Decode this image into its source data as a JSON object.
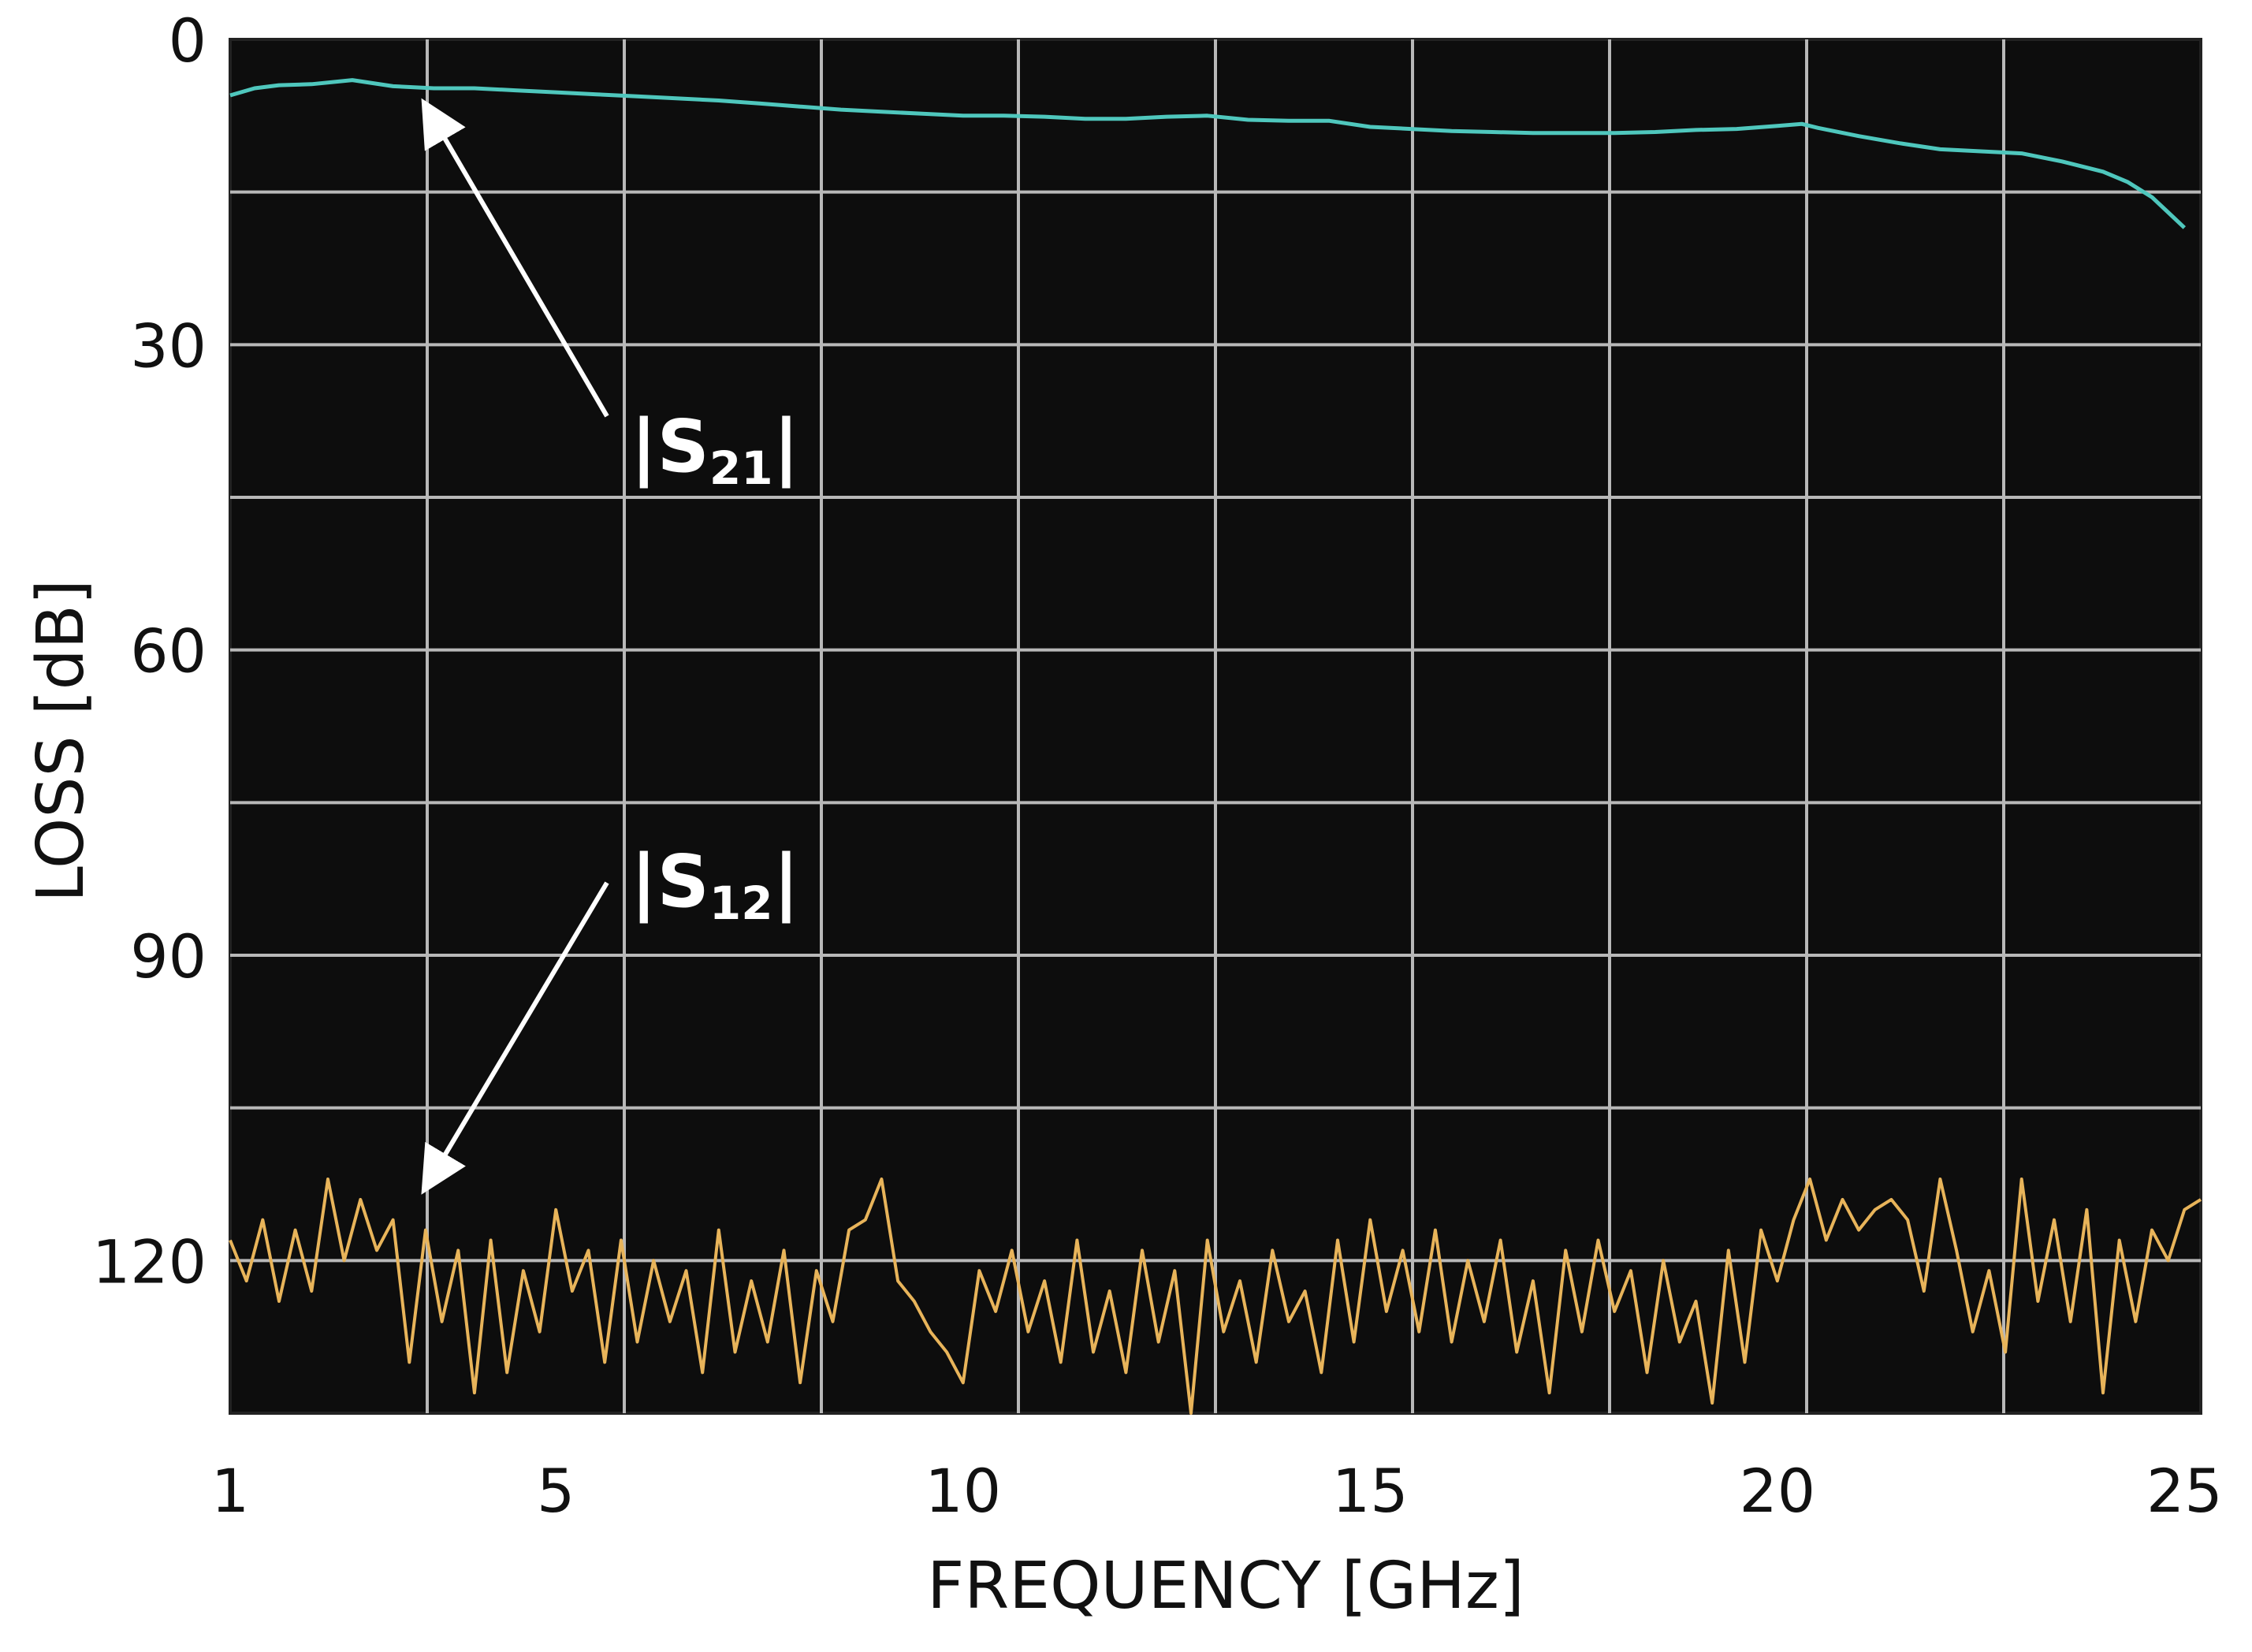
{
  "chart_data": {
    "type": "line",
    "xlabel": "FREQUENCY [GHz]",
    "ylabel": "LOSS [dB]",
    "xlim": [
      1,
      25.2
    ],
    "ylim": [
      0,
      135
    ],
    "y_inverted": true,
    "x_ticks": [
      1,
      5,
      10,
      15,
      20,
      25
    ],
    "y_ticks": [
      0,
      30,
      60,
      90,
      120
    ],
    "grid": true,
    "background": "#0d0d0d",
    "grid_color": "#b8b8b8",
    "annotations": [
      {
        "base": "|S",
        "sub": "21",
        "end": "|",
        "target": [
          3.6,
          5.5
        ]
      },
      {
        "base": "|S",
        "sub": "12",
        "end": "|",
        "target": [
          3.6,
          113.5
        ]
      }
    ],
    "series": [
      {
        "name": "|S21|",
        "color": "#4fc7bd",
        "x": [
          1,
          1.3,
          1.6,
          2,
          2.5,
          3,
          3.5,
          4,
          4.5,
          5,
          5.5,
          6,
          6.5,
          7,
          7.5,
          8,
          8.5,
          9,
          9.5,
          10,
          10.5,
          11,
          11.5,
          12,
          12.5,
          13,
          13.5,
          14,
          14.5,
          15,
          15.5,
          16,
          16.5,
          17,
          17.5,
          18,
          18.5,
          19,
          19.5,
          20,
          20.3,
          20.5,
          21,
          21.5,
          22,
          22.5,
          23,
          23.5,
          24,
          24.3,
          24.6,
          24.8,
          25
        ],
        "y": [
          5.5,
          4.8,
          4.5,
          4.4,
          4.0,
          4.6,
          4.8,
          4.8,
          5.0,
          5.2,
          5.4,
          5.6,
          5.8,
          6.0,
          6.3,
          6.6,
          6.9,
          7.1,
          7.3,
          7.5,
          7.5,
          7.6,
          7.8,
          7.8,
          7.6,
          7.5,
          7.9,
          8.0,
          8.0,
          8.6,
          8.8,
          9.0,
          9.1,
          9.2,
          9.2,
          9.2,
          9.1,
          8.9,
          8.8,
          8.5,
          8.3,
          8.7,
          9.5,
          10.2,
          10.8,
          11.0,
          11.2,
          12.0,
          13.0,
          14.0,
          15.5,
          17.0,
          18.5
        ]
      },
      {
        "name": "|S12|",
        "color": "#e8b45a",
        "x": [
          1.0,
          1.2,
          1.4,
          1.6,
          1.8,
          2.0,
          2.2,
          2.4,
          2.6,
          2.8,
          3.0,
          3.2,
          3.4,
          3.6,
          3.8,
          4.0,
          4.2,
          4.4,
          4.6,
          4.8,
          5.0,
          5.2,
          5.4,
          5.6,
          5.8,
          6.0,
          6.2,
          6.4,
          6.6,
          6.8,
          7.0,
          7.2,
          7.4,
          7.6,
          7.8,
          8.0,
          8.2,
          8.4,
          8.6,
          8.8,
          9.0,
          9.2,
          9.4,
          9.6,
          9.8,
          10.0,
          10.2,
          10.4,
          10.6,
          10.8,
          11.0,
          11.2,
          11.4,
          11.6,
          11.8,
          12.0,
          12.2,
          12.4,
          12.6,
          12.8,
          13.0,
          13.2,
          13.4,
          13.6,
          13.8,
          14.0,
          14.2,
          14.4,
          14.6,
          14.8,
          15.0,
          15.2,
          15.4,
          15.6,
          15.8,
          16.0,
          16.2,
          16.4,
          16.6,
          16.8,
          17.0,
          17.2,
          17.4,
          17.6,
          17.8,
          18.0,
          18.2,
          18.4,
          18.6,
          18.8,
          19.0,
          19.2,
          19.4,
          19.6,
          19.8,
          20.0,
          20.2,
          20.4,
          20.6,
          20.8,
          21.0,
          21.2,
          21.4,
          21.6,
          21.8,
          22.0,
          22.2,
          22.4,
          22.6,
          22.8,
          23.0,
          23.2,
          23.4,
          23.6,
          23.8,
          24.0,
          24.2,
          24.4,
          24.6,
          24.8,
          25.0,
          25.2
        ],
        "y": [
          118,
          122,
          116,
          124,
          117,
          123,
          112,
          120,
          114,
          119,
          116,
          130,
          117,
          126,
          119,
          133,
          118,
          131,
          121,
          127,
          115,
          123,
          119,
          130,
          118,
          128,
          120,
          126,
          121,
          131,
          117,
          129,
          122,
          128,
          119,
          132,
          121,
          126,
          117,
          116,
          112,
          122,
          124,
          127,
          129,
          132,
          121,
          125,
          119,
          127,
          122,
          130,
          118,
          129,
          123,
          131,
          119,
          128,
          121,
          135,
          118,
          127,
          122,
          130,
          119,
          126,
          123,
          131,
          118,
          128,
          116,
          125,
          119,
          127,
          117,
          128,
          120,
          126,
          118,
          129,
          122,
          133,
          119,
          127,
          118,
          125,
          121,
          131,
          120,
          128,
          124,
          134,
          119,
          130,
          117,
          122,
          116,
          112,
          118,
          114,
          117,
          115,
          114,
          116,
          123,
          112,
          119,
          127,
          121,
          129,
          112,
          124,
          116,
          126,
          115,
          133,
          118,
          126,
          117,
          120,
          115,
          114
        ]
      }
    ]
  }
}
